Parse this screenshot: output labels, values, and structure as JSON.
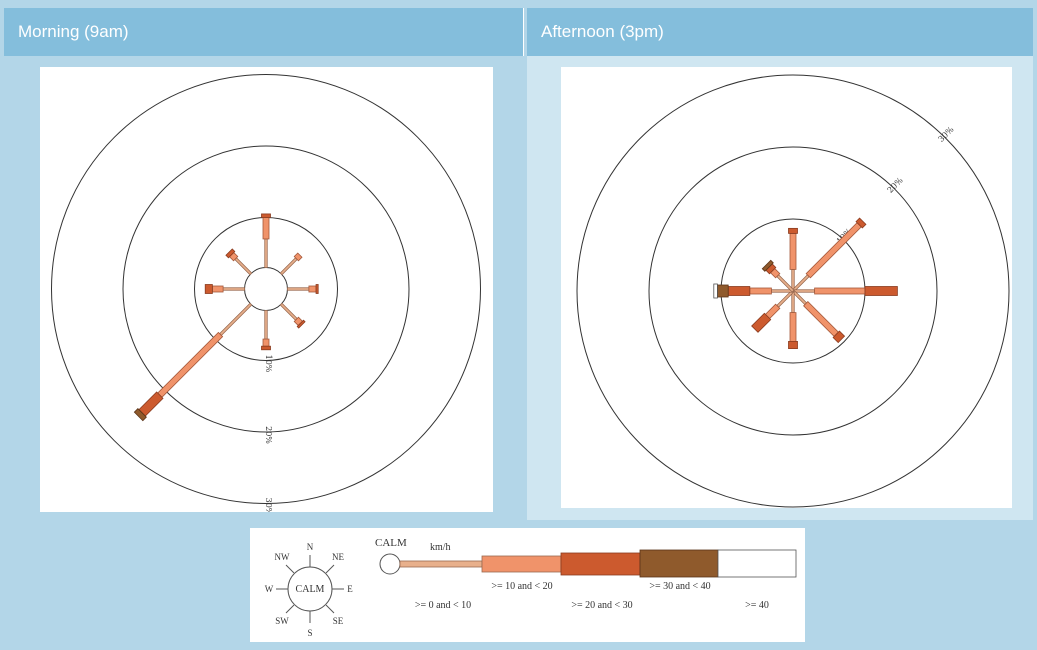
{
  "panels": {
    "morning": {
      "title": "Morning (9am)"
    },
    "afternoon": {
      "title": "Afternoon (3pm)"
    }
  },
  "legend": {
    "compass": {
      "n": "N",
      "ne": "NE",
      "e": "E",
      "se": "SE",
      "s": "S",
      "sw": "SW",
      "w": "W",
      "nw": "NW",
      "center": "CALM"
    },
    "calm_label": "CALM",
    "units": "km/h",
    "bins": [
      {
        "label": ">= 0 and < 10",
        "color": "#e8b08c"
      },
      {
        "label": ">= 10 and < 20",
        "color": "#f0936a"
      },
      {
        "label": ">= 20 and < 30",
        "color": "#cc5a2e"
      },
      {
        "label": ">= 30 and < 40",
        "color": "#8f5a2c"
      },
      {
        "label": ">= 40",
        "color": "#ffffff"
      }
    ]
  },
  "chart_data": [
    {
      "type": "wind-rose",
      "title": "Morning (9am)",
      "ring_labels": [
        "10%",
        "20%",
        "30%"
      ],
      "rings": [
        10,
        20,
        30
      ],
      "calm": 3,
      "directions": [
        "N",
        "NE",
        "E",
        "SE",
        "S",
        "SW",
        "W",
        "NW"
      ],
      "series": [
        {
          "name": ">= 0 and < 10",
          "values": [
            4,
            3,
            3,
            3,
            4,
            6,
            3,
            3
          ]
        },
        {
          "name": ">= 10 and < 20",
          "values": [
            3,
            0.7,
            1,
            0.8,
            1,
            12,
            1.5,
            0.8
          ]
        },
        {
          "name": ">= 20 and < 30",
          "values": [
            0.5,
            0,
            0.3,
            0.3,
            0.5,
            3.5,
            1,
            0.5
          ]
        },
        {
          "name": ">= 30 and < 40",
          "values": [
            0,
            0,
            0,
            0,
            0,
            0.7,
            0,
            0
          ]
        },
        {
          "name": ">= 40",
          "values": [
            0,
            0,
            0,
            0,
            0,
            0,
            0,
            0
          ]
        }
      ]
    },
    {
      "type": "wind-rose",
      "title": "Afternoon (3pm)",
      "ring_labels": [
        "10%",
        "20%",
        "30%"
      ],
      "rings": [
        10,
        20,
        30
      ],
      "calm": 0,
      "directions": [
        "N",
        "NE",
        "E",
        "SE",
        "S",
        "SW",
        "W",
        "NW"
      ],
      "series": [
        {
          "name": ">= 0 and < 10",
          "values": [
            3,
            3,
            3,
            2.5,
            3,
            3,
            3,
            3
          ]
        },
        {
          "name": ">= 10 and < 20",
          "values": [
            5,
            10,
            7,
            6,
            4,
            2,
            3,
            1
          ]
        },
        {
          "name": ">= 20 and < 30",
          "values": [
            0.7,
            0.7,
            4.5,
            1,
            1,
            2.5,
            3,
            0.7
          ]
        },
        {
          "name": ">= 30 and < 40",
          "values": [
            0,
            0,
            0,
            0,
            0,
            0,
            1.5,
            0.5
          ]
        },
        {
          "name": ">= 40",
          "values": [
            0,
            0,
            0,
            0,
            0,
            0,
            0.5,
            0
          ]
        }
      ]
    }
  ]
}
